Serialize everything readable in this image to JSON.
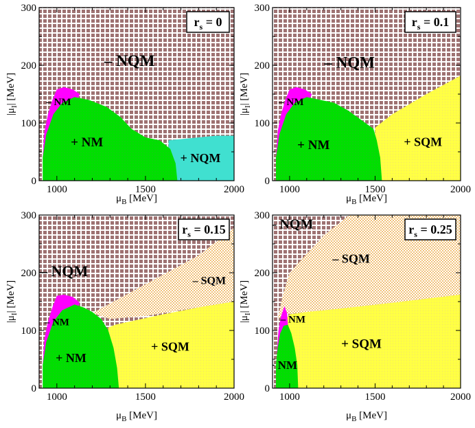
{
  "figure": {
    "description_free": true
  },
  "axis_text": {
    "x_unit": "[MeV]",
    "y_title": "|μ",
    "y_sub": "I",
    "y_unit": "|  [MeV]",
    "x_sym": "μ",
    "x_sub": "B"
  },
  "colors": {
    "nqm_hatch_dark": "#9e7272",
    "nqm_hatch_light": "#ffffff",
    "nm_minus": "#ff00ff",
    "nm_plus": "#00e000",
    "nqm_plus": "#40e0d0",
    "sqm_plus": "#ffff44",
    "sqm_minus": "#f2c27a",
    "frame": "#000000"
  },
  "chart_data": [
    {
      "type": "area",
      "panel": "top-left",
      "badge": {
        "r": "r",
        "sub": "s",
        "rest": " = 0"
      },
      "xlim": [
        900,
        2000
      ],
      "ylim": [
        0,
        300
      ],
      "xticks": [
        1000,
        1500,
        2000
      ],
      "yticks": [
        0,
        100,
        200,
        300
      ],
      "xlabel_small": true,
      "regions": [
        {
          "name": "-NQM",
          "fill": "nqm",
          "points": [
            [
              900,
              0
            ],
            [
              2000,
              0
            ],
            [
              2000,
              300
            ],
            [
              900,
              300
            ]
          ]
        },
        {
          "name": "+NQM",
          "fill": "nqm_plus",
          "points": [
            [
              1630,
              0
            ],
            [
              2000,
              0
            ],
            [
              2000,
              78
            ],
            [
              1900,
              78
            ],
            [
              1800,
              75
            ],
            [
              1700,
              72
            ],
            [
              1630,
              70
            ]
          ]
        },
        {
          "name": "-NM",
          "fill": "nm_minus",
          "points": [
            [
              920,
              40
            ],
            [
              930,
              85
            ],
            [
              950,
              115
            ],
            [
              975,
              140
            ],
            [
              1000,
              158
            ],
            [
              1040,
              162
            ],
            [
              1090,
              158
            ],
            [
              1130,
              150
            ],
            [
              1100,
              130
            ],
            [
              1040,
              110
            ],
            [
              990,
              90
            ],
            [
              960,
              70
            ],
            [
              930,
              50
            ]
          ]
        },
        {
          "name": "+NM",
          "fill": "nm_plus",
          "points": [
            [
              920,
              0
            ],
            [
              1680,
              0
            ],
            [
              1670,
              30
            ],
            [
              1640,
              55
            ],
            [
              1580,
              70
            ],
            [
              1500,
              75
            ],
            [
              1420,
              90
            ],
            [
              1360,
              110
            ],
            [
              1280,
              128
            ],
            [
              1180,
              140
            ],
            [
              1100,
              145
            ],
            [
              1030,
              135
            ],
            [
              980,
              115
            ],
            [
              940,
              80
            ],
            [
              920,
              40
            ]
          ]
        }
      ],
      "labels": [
        {
          "text": "– NQM",
          "x": 1410,
          "y": 205,
          "size": 23
        },
        {
          "text": "+ NQM",
          "x": 1810,
          "y": 37,
          "size": 18
        },
        {
          "text": "– NM",
          "x": 1010,
          "y": 135,
          "size": 15
        },
        {
          "text": "+ NM",
          "x": 1170,
          "y": 65,
          "size": 19
        }
      ]
    },
    {
      "type": "area",
      "panel": "top-right",
      "badge": {
        "r": "r",
        "sub": "s",
        "rest": " = 0.1"
      },
      "xlim": [
        900,
        2000
      ],
      "ylim": [
        0,
        300
      ],
      "xticks": [
        1000,
        1500,
        2000
      ],
      "yticks": [
        0,
        100,
        200,
        300
      ],
      "xlabel_small": true,
      "regions": [
        {
          "name": "-NQM",
          "fill": "nqm",
          "points": [
            [
              900,
              0
            ],
            [
              2000,
              0
            ],
            [
              2000,
              300
            ],
            [
              900,
              300
            ]
          ]
        },
        {
          "name": "+SQM",
          "fill": "sqm_plus",
          "points": [
            [
              1500,
              0
            ],
            [
              2000,
              0
            ],
            [
              2000,
              182
            ],
            [
              1800,
              150
            ],
            [
              1600,
              115
            ],
            [
              1500,
              92
            ]
          ]
        },
        {
          "name": "-NM",
          "fill": "nm_minus",
          "points": [
            [
              920,
              40
            ],
            [
              930,
              85
            ],
            [
              950,
              115
            ],
            [
              975,
              140
            ],
            [
              1000,
              158
            ],
            [
              1040,
              162
            ],
            [
              1090,
              158
            ],
            [
              1130,
              150
            ],
            [
              1100,
              130
            ],
            [
              1040,
              110
            ],
            [
              990,
              90
            ],
            [
              960,
              70
            ],
            [
              930,
              50
            ]
          ]
        },
        {
          "name": "+NM",
          "fill": "nm_plus",
          "points": [
            [
              920,
              0
            ],
            [
              1540,
              0
            ],
            [
              1530,
              40
            ],
            [
              1510,
              70
            ],
            [
              1490,
              90
            ],
            [
              1420,
              105
            ],
            [
              1340,
              122
            ],
            [
              1260,
              135
            ],
            [
              1180,
              140
            ],
            [
              1100,
              145
            ],
            [
              1030,
              135
            ],
            [
              980,
              115
            ],
            [
              940,
              80
            ],
            [
              920,
              40
            ]
          ]
        }
      ],
      "labels": [
        {
          "text": "– NQM",
          "x": 1350,
          "y": 202,
          "size": 23
        },
        {
          "text": "+ SQM",
          "x": 1780,
          "y": 65,
          "size": 18
        },
        {
          "text": "– NM",
          "x": 1010,
          "y": 135,
          "size": 15
        },
        {
          "text": "+ NM",
          "x": 1140,
          "y": 60,
          "size": 19
        }
      ]
    },
    {
      "type": "area",
      "panel": "bottom-left",
      "badge": {
        "r": "r",
        "sub": "s",
        "rest": " = 0.15"
      },
      "xlim": [
        900,
        2000
      ],
      "ylim": [
        0,
        300
      ],
      "xticks": [
        1000,
        1500,
        2000
      ],
      "yticks": [
        0,
        100,
        200,
        300
      ],
      "xlabel_small": false,
      "regions": [
        {
          "name": "-NQM",
          "fill": "nqm",
          "points": [
            [
              900,
              0
            ],
            [
              2000,
              0
            ],
            [
              2000,
              300
            ],
            [
              900,
              300
            ]
          ]
        },
        {
          "name": "-SQM",
          "fill": "sqm_minus",
          "points": [
            [
              1200,
              130
            ],
            [
              1500,
              180
            ],
            [
              1800,
              230
            ],
            [
              2000,
              278
            ],
            [
              2000,
              150
            ],
            [
              1800,
              140
            ],
            [
              1500,
              125
            ],
            [
              1300,
              120
            ]
          ]
        },
        {
          "name": "+SQM",
          "fill": "sqm_plus",
          "points": [
            [
              1300,
              0
            ],
            [
              2000,
              0
            ],
            [
              2000,
              150
            ],
            [
              1800,
              140
            ],
            [
              1600,
              128
            ],
            [
              1450,
              118
            ],
            [
              1330,
              110
            ],
            [
              1290,
              105
            ]
          ]
        },
        {
          "name": "-NM",
          "fill": "nm_minus",
          "points": [
            [
              920,
              40
            ],
            [
              930,
              85
            ],
            [
              950,
              115
            ],
            [
              975,
              140
            ],
            [
              1000,
              160
            ],
            [
              1040,
              162
            ],
            [
              1090,
              158
            ],
            [
              1130,
              148
            ],
            [
              1100,
              130
            ],
            [
              1040,
              110
            ],
            [
              990,
              90
            ],
            [
              960,
              70
            ],
            [
              930,
              50
            ]
          ]
        },
        {
          "name": "+NM",
          "fill": "nm_plus",
          "points": [
            [
              920,
              0
            ],
            [
              1350,
              0
            ],
            [
              1340,
              35
            ],
            [
              1320,
              70
            ],
            [
              1290,
              100
            ],
            [
              1250,
              120
            ],
            [
              1200,
              132
            ],
            [
              1150,
              140
            ],
            [
              1100,
              145
            ],
            [
              1030,
              135
            ],
            [
              980,
              115
            ],
            [
              940,
              80
            ],
            [
              920,
              40
            ]
          ]
        }
      ],
      "labels": [
        {
          "text": "– NQM",
          "x": 1040,
          "y": 200,
          "size": 22
        },
        {
          "text": "– SQM",
          "x": 1860,
          "y": 185,
          "size": 16
        },
        {
          "text": "+ SQM",
          "x": 1640,
          "y": 70,
          "size": 18
        },
        {
          "text": "– NM",
          "x": 1000,
          "y": 113,
          "size": 15
        },
        {
          "text": "+ NM",
          "x": 1080,
          "y": 50,
          "size": 18
        }
      ]
    },
    {
      "type": "area",
      "panel": "bottom-right",
      "badge": {
        "r": "r",
        "sub": "s",
        "rest": " = 0.25"
      },
      "xlim": [
        900,
        2000
      ],
      "ylim": [
        0,
        300
      ],
      "xticks": [
        1000,
        1500,
        2000
      ],
      "yticks": [
        0,
        100,
        200,
        300
      ],
      "xlabel_small": false,
      "regions": [
        {
          "name": "-NQM",
          "fill": "nqm",
          "points": [
            [
              900,
              0
            ],
            [
              2000,
              0
            ],
            [
              2000,
              300
            ],
            [
              900,
              300
            ]
          ]
        },
        {
          "name": "-SQM",
          "fill": "sqm_minus",
          "points": [
            [
              930,
              120
            ],
            [
              960,
              160
            ],
            [
              1000,
              200
            ],
            [
              1200,
              265
            ],
            [
              1350,
              300
            ],
            [
              2000,
              300
            ],
            [
              2000,
              162
            ],
            [
              1600,
              148
            ],
            [
              1300,
              138
            ],
            [
              1100,
              132
            ],
            [
              980,
              128
            ]
          ]
        },
        {
          "name": "+SQM",
          "fill": "sqm_plus",
          "points": [
            [
              1000,
              0
            ],
            [
              2000,
              0
            ],
            [
              2000,
              162
            ],
            [
              1600,
              148
            ],
            [
              1300,
              138
            ],
            [
              1100,
              132
            ],
            [
              1000,
              128
            ],
            [
              980,
              120
            ]
          ]
        },
        {
          "name": "-NM",
          "fill": "nm_minus",
          "points": [
            [
              925,
              60
            ],
            [
              935,
              100
            ],
            [
              950,
              125
            ],
            [
              970,
              142
            ],
            [
              985,
              130
            ],
            [
              990,
              110
            ],
            [
              975,
              95
            ],
            [
              950,
              80
            ]
          ]
        },
        {
          "name": "+NM",
          "fill": "nm_plus",
          "points": [
            [
              920,
              0
            ],
            [
              1050,
              0
            ],
            [
              1045,
              40
            ],
            [
              1030,
              70
            ],
            [
              1010,
              95
            ],
            [
              990,
              110
            ],
            [
              965,
              108
            ],
            [
              945,
              95
            ],
            [
              930,
              70
            ],
            [
              920,
              40
            ]
          ]
        }
      ],
      "labels": [
        {
          "text": "– NQM",
          "x": 1010,
          "y": 282,
          "size": 20
        },
        {
          "text": "– SQM",
          "x": 1360,
          "y": 222,
          "size": 18
        },
        {
          "text": "+ SQM",
          "x": 1420,
          "y": 75,
          "size": 19
        },
        {
          "text": "– NM",
          "x": 1020,
          "y": 118,
          "size": 15
        },
        {
          "text": "+ NM",
          "x": 960,
          "y": 38,
          "size": 17
        }
      ]
    }
  ]
}
